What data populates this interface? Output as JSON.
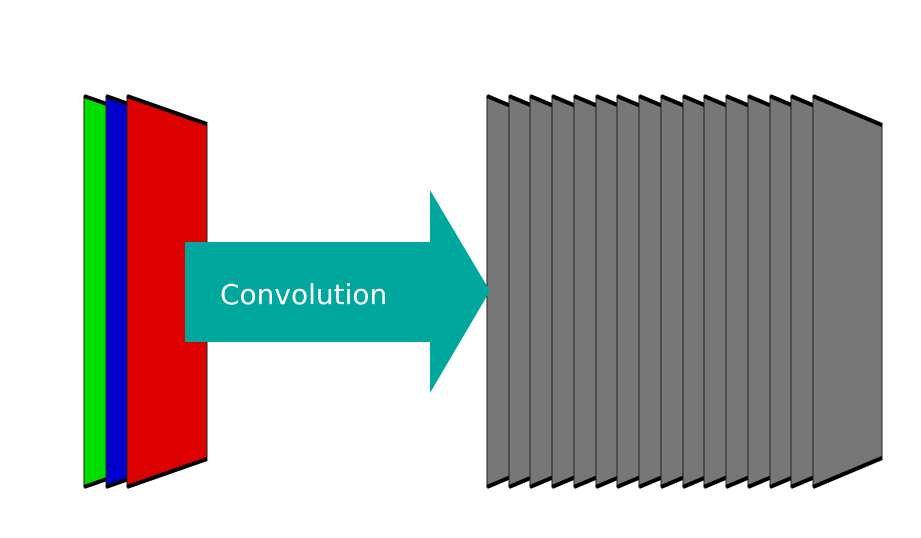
{
  "diagram": {
    "arrow_label": "Convolution",
    "colors": {
      "background": "#ffffff",
      "arrow": "#00a79d",
      "arrow_text": "#ffffff",
      "feature_map": "#777777",
      "outline": "#000000",
      "input_channels": [
        "#00dd00",
        "#0000cc",
        "#dd0000"
      ]
    },
    "input": {
      "channel_count": 3,
      "channels": [
        "green",
        "blue",
        "red"
      ]
    },
    "output": {
      "feature_map_count": 16
    }
  }
}
